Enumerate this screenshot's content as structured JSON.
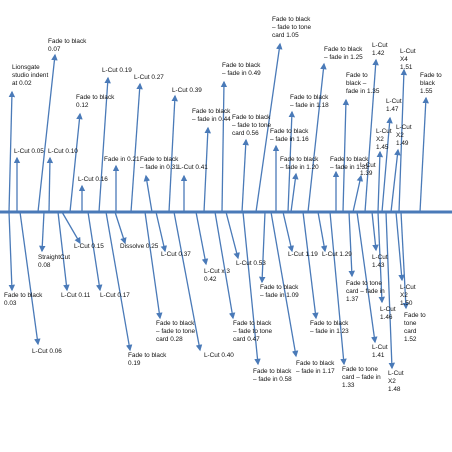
{
  "colors": {
    "timeline": "#4a7ab8",
    "connector": "#4a7ab8",
    "text": "#111111"
  },
  "events": [
    {
      "id": "lionsgate-ident",
      "text": "Lionsgate\nstudio indent\nat 0.02",
      "side": "above"
    },
    {
      "id": "fade-black-003",
      "text": "Fade to black\n0.03",
      "side": "below"
    },
    {
      "id": "lcut-005",
      "text": "L-Cut 0.05",
      "side": "above"
    },
    {
      "id": "lcut-006",
      "text": "L-Cut 0.06",
      "side": "below"
    },
    {
      "id": "fade-black-007",
      "text": "Fade to black\n0.07",
      "side": "above"
    },
    {
      "id": "straight-cut-008",
      "text": "StraightCut\n0.08",
      "side": "below"
    },
    {
      "id": "lcut-010",
      "text": "L-Cut 0.10",
      "side": "above"
    },
    {
      "id": "lcut-011",
      "text": "L-Cut 0.11",
      "side": "below"
    },
    {
      "id": "fade-black-012",
      "text": "Fade to black\n0.12",
      "side": "above"
    },
    {
      "id": "lcut-015",
      "text": "L-Cut 0.15",
      "side": "below"
    },
    {
      "id": "lcut-016",
      "text": "L-Cut 0.16",
      "side": "above"
    },
    {
      "id": "lcut-017",
      "text": "L-Cut 0.17",
      "side": "below"
    },
    {
      "id": "lcut-019",
      "text": "L-Cut 0.19",
      "side": "above"
    },
    {
      "id": "fade-black-019",
      "text": "Fade to black\n0.19",
      "side": "below"
    },
    {
      "id": "fade-in-021",
      "text": "Fade in 0.21",
      "side": "above"
    },
    {
      "id": "dissolve-025",
      "text": "Dissolve 0.25",
      "side": "below"
    },
    {
      "id": "lcut-027",
      "text": "L-Cut 0.27",
      "side": "above"
    },
    {
      "id": "fade-tone-028",
      "text": "Fade to black\n– fade to tone\ncard 0.28",
      "side": "below"
    },
    {
      "id": "fade-black-in-031",
      "text": "Fade to black\n– fade in 0.31",
      "side": "above"
    },
    {
      "id": "lcut-037",
      "text": "L-Cut 0.37",
      "side": "below"
    },
    {
      "id": "lcut-039",
      "text": "L-Cut 0.39",
      "side": "above"
    },
    {
      "id": "lcut-040",
      "text": "L-Cut 0.40",
      "side": "below"
    },
    {
      "id": "lcut-041",
      "text": "L-Cut 0.41",
      "side": "above"
    },
    {
      "id": "lcut-x3-042",
      "text": "L-Cut x 3\n0.42",
      "side": "below"
    },
    {
      "id": "fade-black-in-044",
      "text": "Fade to black\n– fade in 0.44",
      "side": "above"
    },
    {
      "id": "fade-tone-047",
      "text": "Fade to black\n– fade to tone\ncard 0.47",
      "side": "below"
    },
    {
      "id": "fade-black-in-049",
      "text": "Fade to black\n– fade in 0.49",
      "side": "above"
    },
    {
      "id": "lcut-053",
      "text": "L-Cut 0.53",
      "side": "below"
    },
    {
      "id": "fade-tone-056",
      "text": "Fade to black\n– fade to tone\ncard 0.56",
      "side": "above"
    },
    {
      "id": "fade-black-in-058",
      "text": "Fade to black\n– fade in 0.58",
      "side": "below"
    },
    {
      "id": "fade-tone-105",
      "text": "Fade to black\n– fade to tone\ncard 1.05",
      "side": "above"
    },
    {
      "id": "fade-black-in-109",
      "text": "Fade to black\n– fade in 1.09",
      "side": "below"
    },
    {
      "id": "fade-black-in-116",
      "text": "Fade to black\n– fade in 1.16",
      "side": "above"
    },
    {
      "id": "fade-black-in-117",
      "text": "Fade to black\n– fade in 1.17",
      "side": "below"
    },
    {
      "id": "fade-black-in-118",
      "text": "Fade to black\n– fade in 1.18",
      "side": "above"
    },
    {
      "id": "lcut-119",
      "text": "L-Cut 1.19",
      "side": "below"
    },
    {
      "id": "fade-black-in-120",
      "text": "Fade to black\n– fade in 1.20",
      "side": "above"
    },
    {
      "id": "fade-black-in-123",
      "text": "Fade to black\n– fade in 1.23",
      "side": "below"
    },
    {
      "id": "fade-black-in-125",
      "text": "Fade to black\n– fade in 1.25",
      "side": "above"
    },
    {
      "id": "lcut-129",
      "text": "L-Cut 1.29",
      "side": "below"
    },
    {
      "id": "fade-black-in-132",
      "text": "Fade to black\n– fade in 1.32",
      "side": "above"
    },
    {
      "id": "fade-tone-133",
      "text": "Fade to tone\ncard – fade in\n1.33",
      "side": "below"
    },
    {
      "id": "fade-black-in-135",
      "text": "Fade to\nblack –\nfade in 1.35",
      "side": "above"
    },
    {
      "id": "fade-tone-137",
      "text": "Fade to tone\ncard – fade in\n1.37",
      "side": "below"
    },
    {
      "id": "lcut-139",
      "text": "L-Cut\n1.39",
      "side": "above"
    },
    {
      "id": "lcut-141",
      "text": "L-Cut\n1.41",
      "side": "below"
    },
    {
      "id": "lcut-142",
      "text": "L-Cut\n1.42",
      "side": "above"
    },
    {
      "id": "lcut-143",
      "text": "L-Cut\n1.43",
      "side": "below"
    },
    {
      "id": "lcut-x2-145",
      "text": "L-Cut\nX2\n1.45",
      "side": "above"
    },
    {
      "id": "lcut-146",
      "text": "L-Cut\n1.46",
      "side": "below"
    },
    {
      "id": "lcut-147",
      "text": "L-Cut\n1.47",
      "side": "above"
    },
    {
      "id": "lcut-x2-148",
      "text": "L-Cut\nX2\n1.48",
      "side": "below"
    },
    {
      "id": "lcut-x2-149",
      "text": "L-Cut\nX2\n1.49",
      "side": "above"
    },
    {
      "id": "lcut-x2-150",
      "text": "L-Cut\nX2\n1.50",
      "side": "below"
    },
    {
      "id": "lcut-x4-151",
      "text": "L-Cut\nX4\n1.51",
      "side": "above"
    },
    {
      "id": "fade-tone-152",
      "text": "Fade to\ntone\ncard\n1.52",
      "side": "below"
    },
    {
      "id": "fade-black-155",
      "text": "Fade to\nblack\n1.55",
      "side": "above"
    }
  ]
}
